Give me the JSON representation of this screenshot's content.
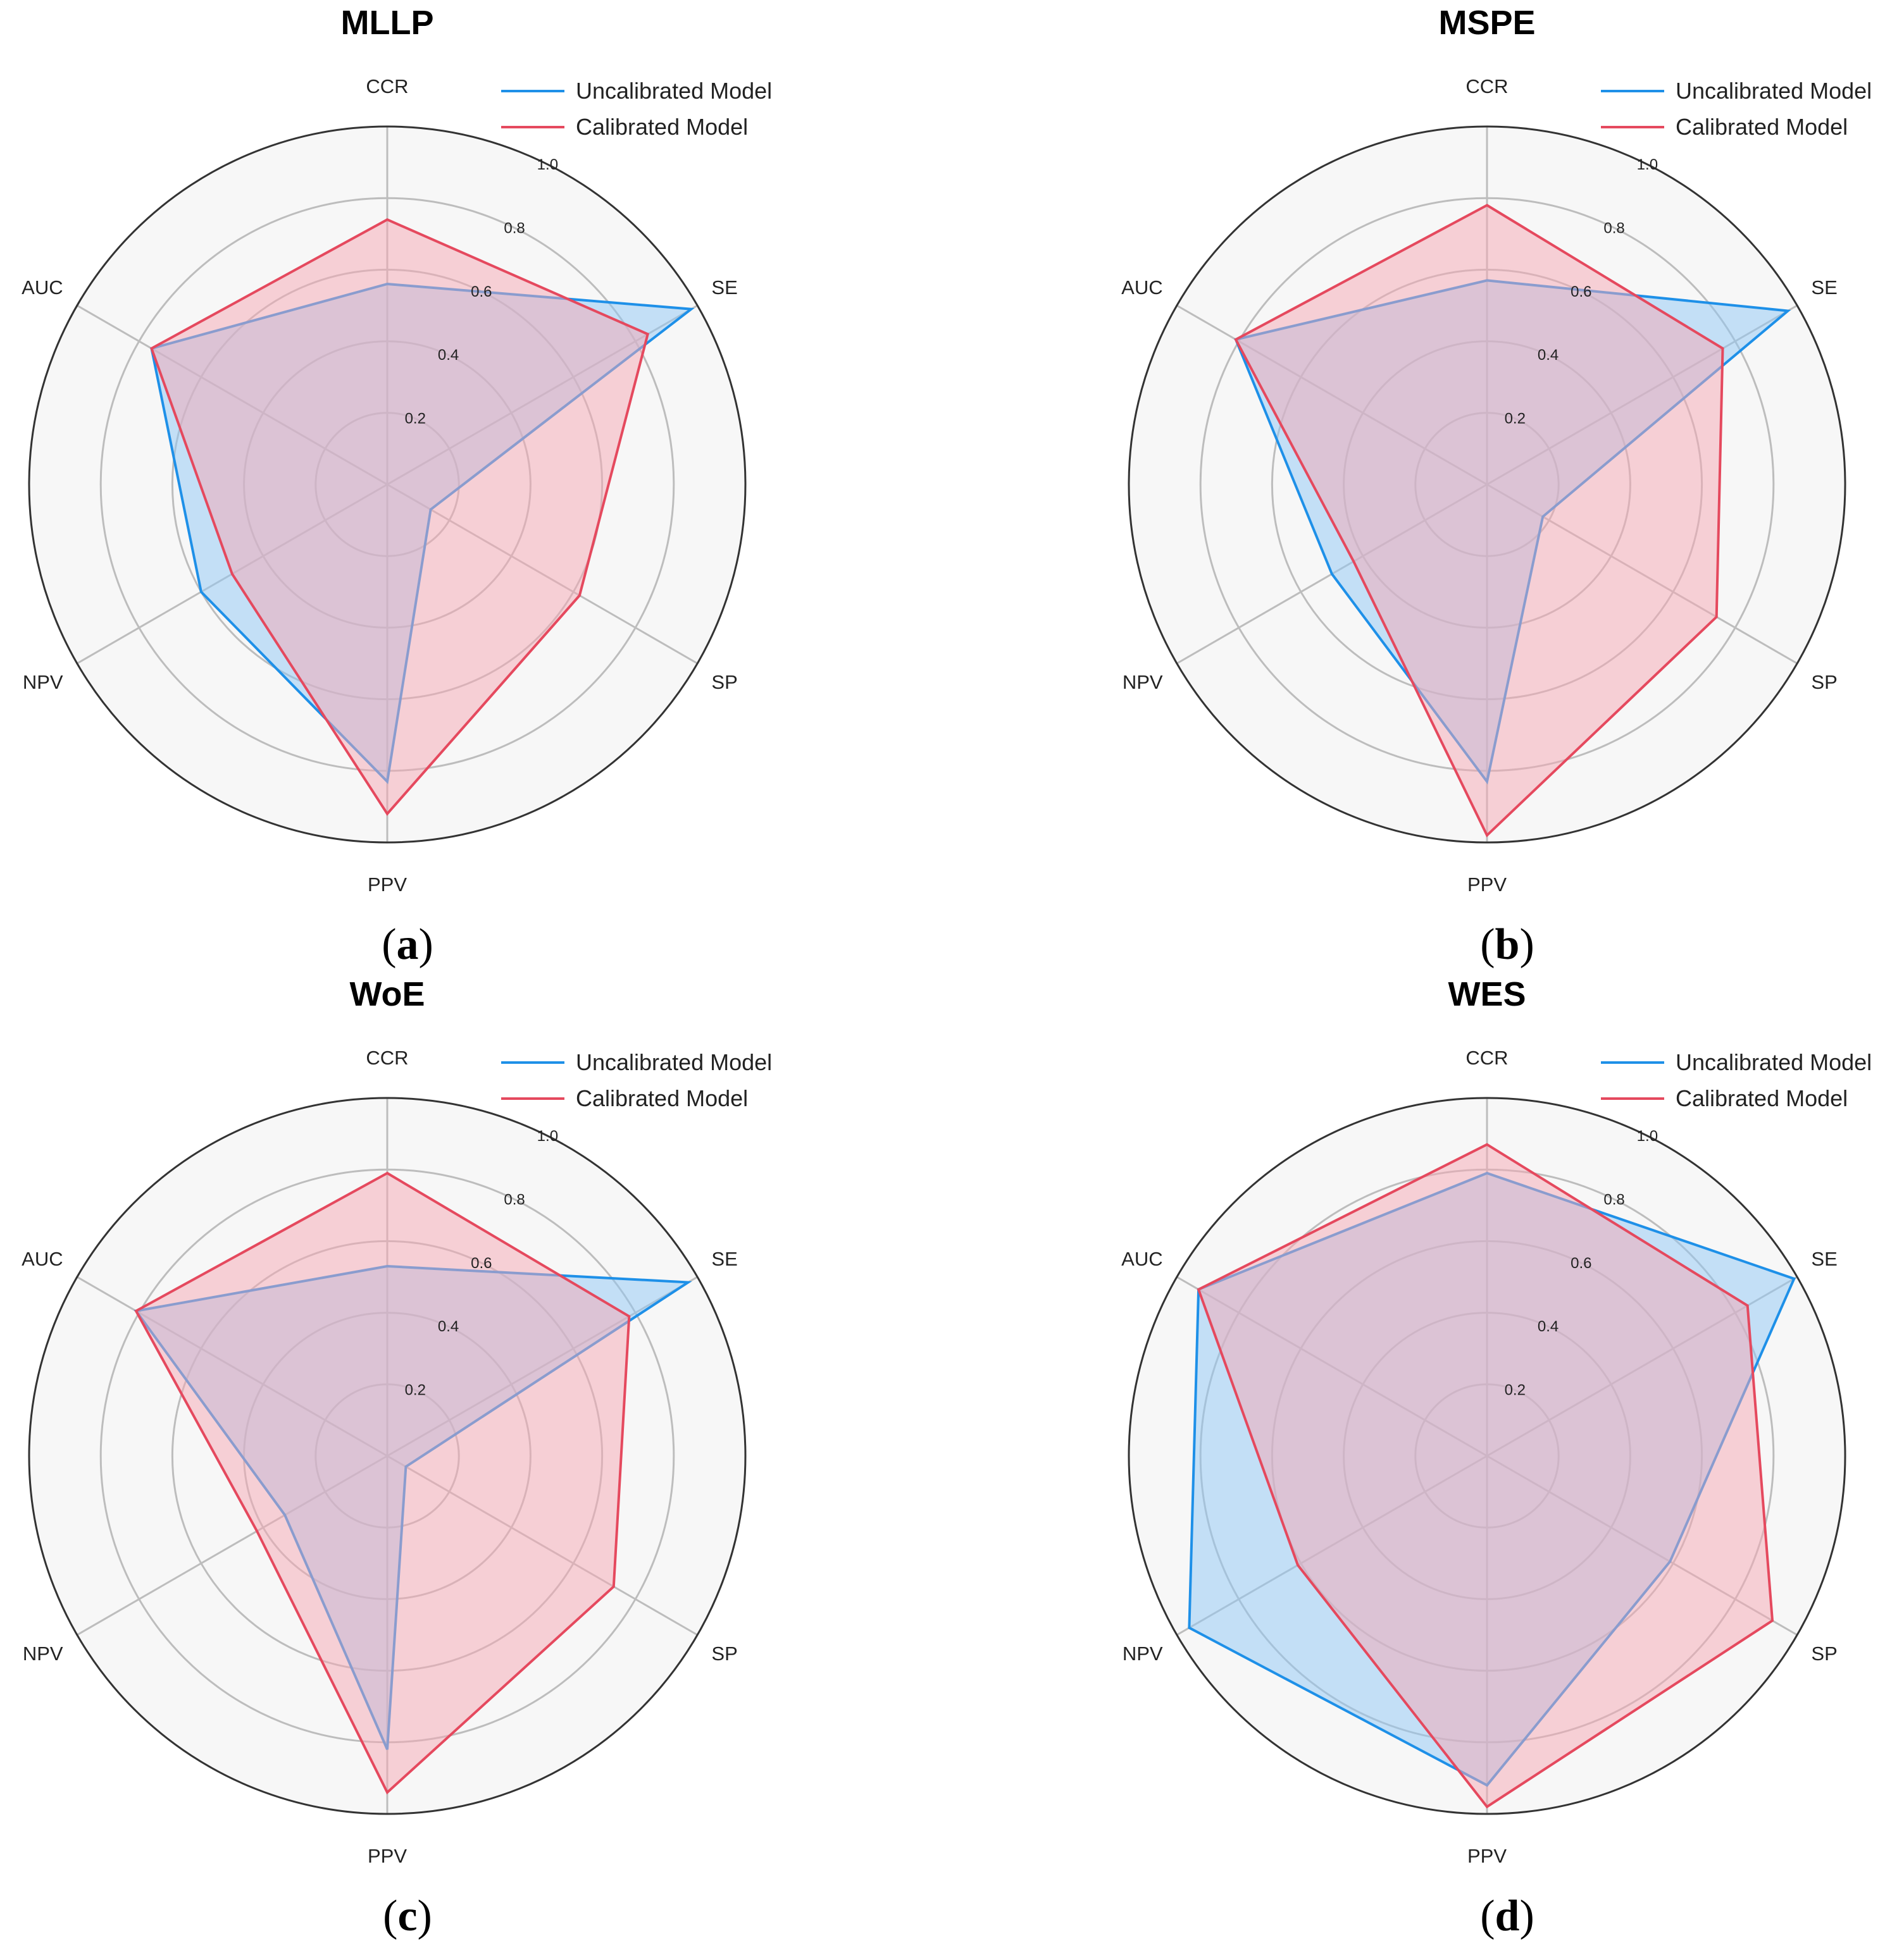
{
  "figure": {
    "colors": {
      "uncalibrated": "#1e90e8",
      "calibrated": "#e5495e",
      "uncalibrated_fill": "#8fc8f5",
      "calibrated_fill": "#f5a7b4",
      "background": "#f7f7f7"
    }
  },
  "chart_data": [
    {
      "type": "radar",
      "title": "MLLP",
      "caption": "a",
      "axes": [
        "CCR",
        "SE",
        "SP",
        "PPV",
        "NPV",
        "AUC"
      ],
      "rlim": [
        0,
        1.0
      ],
      "radial_ticks": [
        "0.2",
        "0.4",
        "0.6",
        "0.8",
        "1.0"
      ],
      "legend": [
        "Uncalibrated Model",
        "Calibrated Model"
      ],
      "series": [
        {
          "name": "Uncalibrated Model",
          "values": [
            0.56,
            0.98,
            0.14,
            0.83,
            0.6,
            0.76
          ]
        },
        {
          "name": "Calibrated Model",
          "values": [
            0.74,
            0.84,
            0.62,
            0.92,
            0.5,
            0.76
          ]
        }
      ]
    },
    {
      "type": "radar",
      "title": "MSPE",
      "caption": "b",
      "axes": [
        "CCR",
        "SE",
        "SP",
        "PPV",
        "NPV",
        "AUC"
      ],
      "rlim": [
        0,
        1.0
      ],
      "radial_ticks": [
        "0.2",
        "0.4",
        "0.6",
        "0.8",
        "1.0"
      ],
      "legend": [
        "Uncalibrated Model",
        "Calibrated Model"
      ],
      "series": [
        {
          "name": "Uncalibrated Model",
          "values": [
            0.57,
            0.97,
            0.18,
            0.83,
            0.5,
            0.81
          ]
        },
        {
          "name": "Calibrated Model",
          "values": [
            0.78,
            0.76,
            0.74,
            0.98,
            0.43,
            0.81
          ]
        }
      ]
    },
    {
      "type": "radar",
      "title": "WoE",
      "caption": "c",
      "axes": [
        "CCR",
        "SE",
        "SP",
        "PPV",
        "NPV",
        "AUC"
      ],
      "rlim": [
        0,
        1.0
      ],
      "radial_ticks": [
        "0.2",
        "0.4",
        "0.6",
        "0.8",
        "1.0"
      ],
      "legend": [
        "Uncalibrated Model",
        "Calibrated Model"
      ],
      "series": [
        {
          "name": "Uncalibrated Model",
          "values": [
            0.53,
            0.97,
            0.06,
            0.82,
            0.33,
            0.81
          ]
        },
        {
          "name": "Calibrated Model",
          "values": [
            0.79,
            0.78,
            0.73,
            0.94,
            0.42,
            0.81
          ]
        }
      ]
    },
    {
      "type": "radar",
      "title": "WES",
      "caption": "d",
      "axes": [
        "CCR",
        "SE",
        "SP",
        "PPV",
        "NPV",
        "AUC"
      ],
      "rlim": [
        0,
        1.0
      ],
      "radial_ticks": [
        "0.2",
        "0.4",
        "0.6",
        "0.8",
        "1.0"
      ],
      "legend": [
        "Uncalibrated Model",
        "Calibrated Model"
      ],
      "series": [
        {
          "name": "Uncalibrated Model",
          "values": [
            0.79,
            0.99,
            0.59,
            0.92,
            0.96,
            0.93
          ]
        },
        {
          "name": "Calibrated Model",
          "values": [
            0.87,
            0.84,
            0.92,
            0.98,
            0.61,
            0.93
          ]
        }
      ]
    }
  ]
}
